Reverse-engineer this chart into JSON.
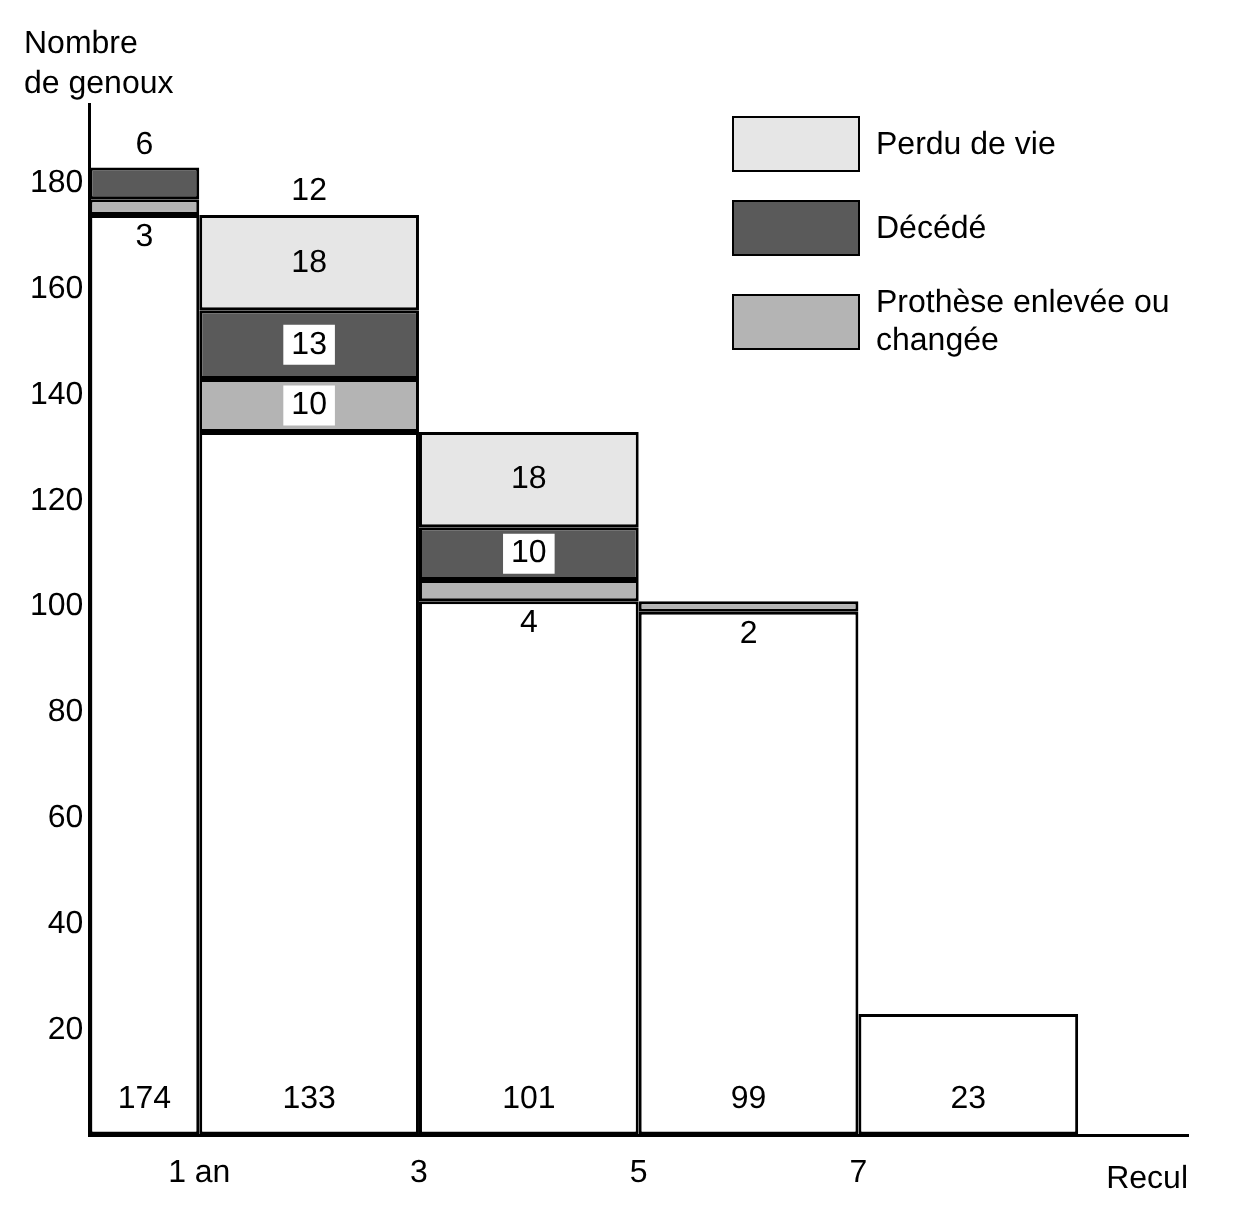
{
  "chart_data": {
    "type": "bar",
    "stacked": true,
    "ylabel": "Nombre de genoux",
    "xlabel": "Recul",
    "x": [
      0.5,
      2,
      4,
      6,
      8
    ],
    "series": [
      {
        "color": "#ffffff",
        "values": [
          174,
          133,
          101,
          99,
          23
        ]
      },
      {
        "name": "Prothèse enlevée ou changée",
        "color": "#b4b4b4",
        "values": [
          3,
          10,
          4,
          2,
          null
        ]
      },
      {
        "name": "Décédé",
        "color": "#5a5a5a",
        "values": [
          6,
          13,
          10,
          null,
          null
        ]
      },
      {
        "name": "Perdu de vie",
        "color": "#e6e6e6",
        "values": [
          null,
          18,
          18,
          null,
          null
        ]
      }
    ],
    "ylim": [
      0,
      195
    ],
    "yticks": [
      {
        "value": 0,
        "label": null
      },
      20,
      40,
      60,
      80,
      100,
      120,
      140,
      160,
      180
    ],
    "xlim": [
      0,
      10
    ],
    "xticks": [
      {
        "value": 1,
        "label": "1 an"
      },
      3,
      5,
      7
    ],
    "annotations": [
      {
        "text": "12",
        "x": 2,
        "y": 174
      }
    ],
    "data_labels": true,
    "grid": false,
    "legend": "top right"
  }
}
